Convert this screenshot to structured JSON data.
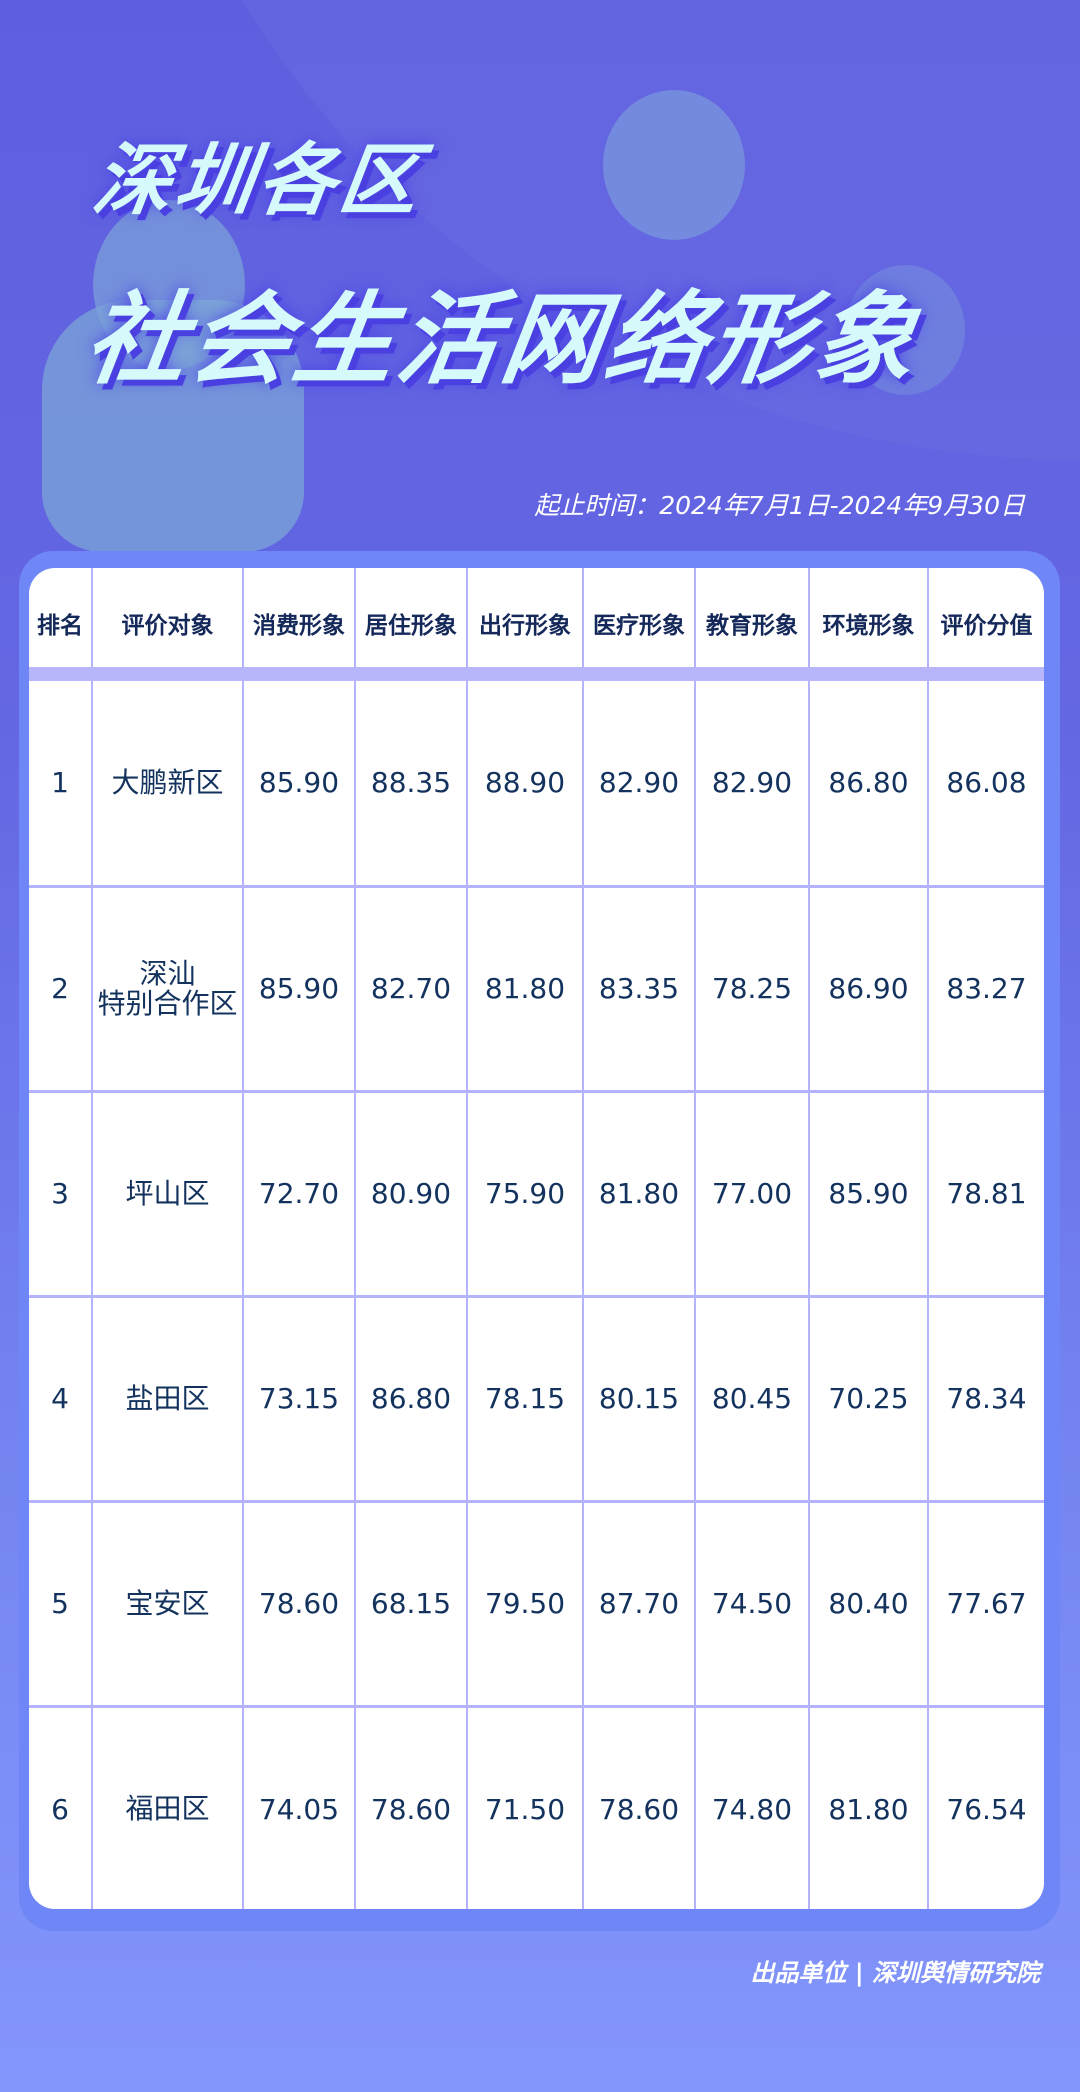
{
  "title": {
    "line1": "深圳各区",
    "line2": "社会生活网络形象"
  },
  "date_range": "起止时间：2024年7月1日-2024年9月30日",
  "table": {
    "headers": [
      "排名",
      "评价对象",
      "消费形象",
      "居住形象",
      "出行形象",
      "医疗形象",
      "教育形象",
      "环境形象",
      "评价分值"
    ],
    "rows": [
      {
        "rank": "1",
        "name": "大鹏新区",
        "values": [
          "85.90",
          "88.35",
          "88.90",
          "82.90",
          "82.90",
          "86.80",
          "86.08"
        ]
      },
      {
        "rank": "2",
        "name": "深汕\n特别合作区",
        "values": [
          "85.90",
          "82.70",
          "81.80",
          "83.35",
          "78.25",
          "86.90",
          "83.27"
        ]
      },
      {
        "rank": "3",
        "name": "坪山区",
        "values": [
          "72.70",
          "80.90",
          "75.90",
          "81.80",
          "77.00",
          "85.90",
          "78.81"
        ]
      },
      {
        "rank": "4",
        "name": "盐田区",
        "values": [
          "73.15",
          "86.80",
          "78.15",
          "80.15",
          "80.45",
          "70.25",
          "78.34"
        ]
      },
      {
        "rank": "5",
        "name": "宝安区",
        "values": [
          "78.60",
          "68.15",
          "79.50",
          "87.70",
          "74.50",
          "80.40",
          "77.67"
        ]
      },
      {
        "rank": "6",
        "name": "福田区",
        "values": [
          "74.05",
          "78.60",
          "71.50",
          "78.60",
          "74.80",
          "81.80",
          "76.54"
        ]
      }
    ]
  },
  "footer": "出品单位 | 深圳舆情研究院",
  "colors": {
    "title": "#d6fafc",
    "text": "#13335e",
    "grid": "#b3b3ff",
    "card": "#6f86f7"
  }
}
